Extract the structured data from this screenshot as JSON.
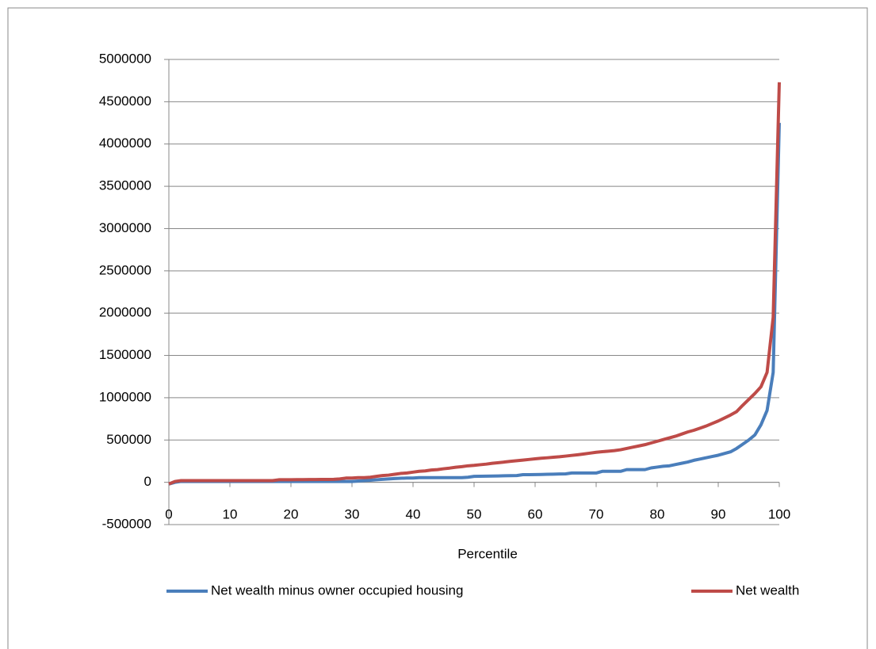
{
  "chart_data": {
    "type": "line",
    "x_label": "Percentile",
    "x": [
      0,
      1,
      2,
      3,
      4,
      5,
      6,
      7,
      8,
      9,
      10,
      11,
      12,
      13,
      14,
      15,
      16,
      17,
      18,
      19,
      20,
      21,
      22,
      23,
      24,
      25,
      26,
      27,
      28,
      29,
      30,
      31,
      32,
      33,
      34,
      35,
      36,
      37,
      38,
      39,
      40,
      41,
      42,
      43,
      44,
      45,
      46,
      47,
      48,
      49,
      50,
      51,
      52,
      53,
      54,
      55,
      56,
      57,
      58,
      59,
      60,
      61,
      62,
      63,
      64,
      65,
      66,
      67,
      68,
      69,
      70,
      71,
      72,
      73,
      74,
      75,
      76,
      77,
      78,
      79,
      80,
      81,
      82,
      83,
      84,
      85,
      86,
      87,
      88,
      89,
      90,
      91,
      92,
      93,
      94,
      95,
      96,
      97,
      98,
      99,
      100
    ],
    "series": [
      {
        "name": "Net wealth minus owner occupied housing",
        "color": "#4a7ebb",
        "values": [
          -20000,
          0,
          10000,
          10000,
          10000,
          10000,
          10000,
          10000,
          10000,
          10000,
          10000,
          10000,
          10000,
          10000,
          10000,
          10000,
          10000,
          10000,
          10000,
          10000,
          10000,
          10000,
          10000,
          10000,
          10000,
          10000,
          10000,
          10000,
          10000,
          10000,
          10000,
          15000,
          20000,
          25000,
          30000,
          35000,
          40000,
          45000,
          48000,
          50000,
          50000,
          55000,
          55000,
          55000,
          55000,
          55000,
          55000,
          55000,
          55000,
          60000,
          70000,
          72000,
          73000,
          74000,
          75000,
          77000,
          78000,
          80000,
          90000,
          90000,
          92000,
          93000,
          95000,
          96000,
          98000,
          100000,
          110000,
          110000,
          110000,
          110000,
          110000,
          130000,
          130000,
          130000,
          130000,
          150000,
          150000,
          150000,
          150000,
          170000,
          180000,
          190000,
          195000,
          210000,
          225000,
          240000,
          260000,
          275000,
          290000,
          305000,
          320000,
          340000,
          360000,
          400000,
          450000,
          500000,
          560000,
          680000,
          850000,
          1300000,
          4250000
        ]
      },
      {
        "name": "Net wealth",
        "color": "#be4b48",
        "values": [
          -20000,
          10000,
          20000,
          20000,
          20000,
          20000,
          20000,
          20000,
          20000,
          20000,
          20000,
          20000,
          20000,
          20000,
          20000,
          20000,
          20000,
          20000,
          30000,
          30000,
          30000,
          32000,
          32000,
          33000,
          33000,
          34000,
          34000,
          35000,
          40000,
          50000,
          50000,
          55000,
          55000,
          60000,
          70000,
          80000,
          85000,
          95000,
          105000,
          110000,
          120000,
          130000,
          135000,
          145000,
          150000,
          160000,
          168000,
          178000,
          185000,
          195000,
          200000,
          208000,
          215000,
          225000,
          232000,
          240000,
          248000,
          255000,
          262000,
          270000,
          278000,
          285000,
          290000,
          296000,
          302000,
          310000,
          318000,
          326000,
          335000,
          345000,
          355000,
          362000,
          368000,
          375000,
          385000,
          400000,
          415000,
          430000,
          445000,
          465000,
          485000,
          505000,
          525000,
          545000,
          570000,
          595000,
          615000,
          640000,
          665000,
          695000,
          725000,
          760000,
          795000,
          835000,
          910000,
          980000,
          1050000,
          1130000,
          1300000,
          1950000,
          4730000
        ]
      }
    ],
    "xlim": [
      0,
      100
    ],
    "xticks": [
      0,
      10,
      20,
      30,
      40,
      50,
      60,
      70,
      80,
      90,
      100
    ],
    "ylim": [
      -500000,
      5000000
    ],
    "yticks": [
      -500000,
      0,
      500000,
      1000000,
      1500000,
      2000000,
      2500000,
      3000000,
      3500000,
      4000000,
      4500000,
      5000000
    ],
    "grid": true,
    "legend": "bottom"
  }
}
